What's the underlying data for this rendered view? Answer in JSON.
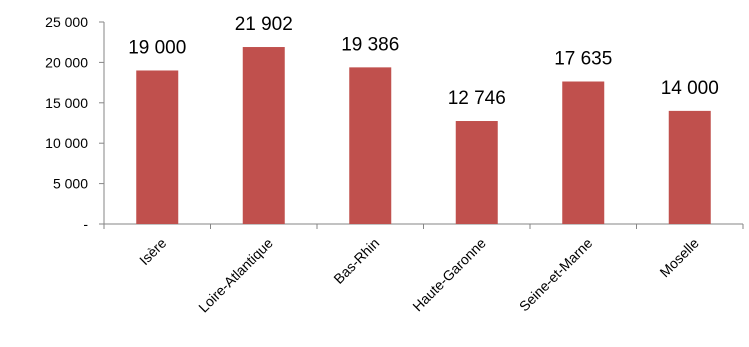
{
  "chart_data": {
    "type": "bar",
    "categories": [
      "Isère",
      "Loire-Atlantique",
      "Bas-Rhin",
      "Haute-Garonne",
      "Seine-et-Marne",
      "Moselle"
    ],
    "values": [
      19000,
      21902,
      19386,
      12746,
      17635,
      14000
    ],
    "data_labels": [
      "19 000",
      "21 902",
      "19 386",
      "12 746",
      "17 635",
      "14 000"
    ],
    "y_ticks": [
      {
        "value": 0,
        "label": "-"
      },
      {
        "value": 5000,
        "label": "5 000"
      },
      {
        "value": 10000,
        "label": "10 000"
      },
      {
        "value": 15000,
        "label": "15 000"
      },
      {
        "value": 20000,
        "label": "20 000"
      },
      {
        "value": 25000,
        "label": "25 000"
      }
    ],
    "ylim": [
      0,
      25000
    ],
    "title": "",
    "xlabel": "",
    "ylabel": "",
    "grid": false,
    "legend": "none",
    "bar_color": "#C0504D"
  }
}
